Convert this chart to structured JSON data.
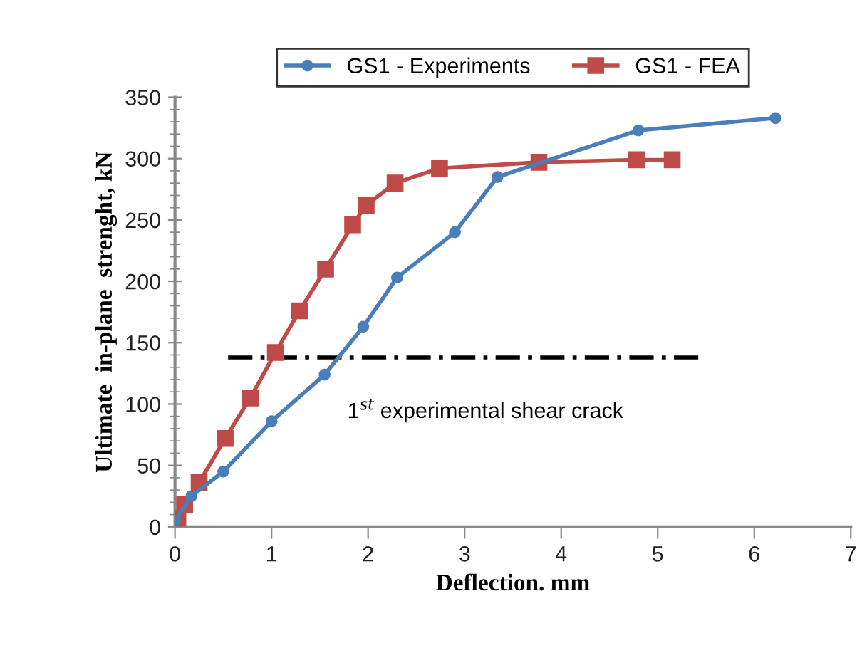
{
  "chart_data": {
    "type": "line",
    "xlabel": "Deflection. mm",
    "ylabel": "Ultimate  in-plane  strenght, kN",
    "xlim": [
      0,
      7
    ],
    "xticks": [
      0,
      1,
      2,
      3,
      4,
      5,
      6,
      7
    ],
    "ylim": [
      0,
      350
    ],
    "yticks": [
      0,
      50,
      100,
      150,
      200,
      250,
      300,
      350
    ],
    "grid": false,
    "legend": "top",
    "series": [
      {
        "name": "GS1 - Experiments",
        "color": "#4a7ebb",
        "marker": "circle",
        "x": [
          0,
          0.17,
          0.5,
          1.0,
          1.55,
          1.95,
          2.3,
          2.9,
          3.34,
          4.8,
          6.22
        ],
        "values": [
          5,
          25,
          45,
          86,
          124,
          163,
          203,
          240,
          285,
          323,
          333
        ]
      },
      {
        "name": "GS1 - FEA",
        "color": "#be4b48",
        "marker": "square",
        "x": [
          0.03,
          0.1,
          0.25,
          0.52,
          0.78,
          1.04,
          1.29,
          1.56,
          1.84,
          1.98,
          2.28,
          2.74,
          3.77,
          4.78,
          5.15
        ],
        "values": [
          7,
          18,
          36,
          72,
          105,
          142,
          176,
          210,
          246,
          262,
          280,
          292,
          297,
          299,
          299
        ]
      },
      {
        "color": "#000000",
        "marker": "none",
        "line_style": "dashdot",
        "x": [
          0.55,
          5.42
        ],
        "values": [
          138,
          138
        ]
      }
    ],
    "annotations": [
      "1$^{st}$ experimental shear crack"
    ]
  }
}
